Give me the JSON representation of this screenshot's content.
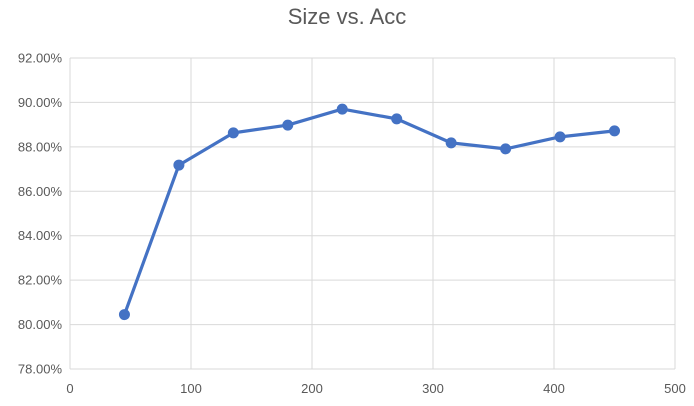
{
  "chart_data": {
    "type": "line",
    "title": "Size vs. Acc",
    "xlabel": "",
    "ylabel": "",
    "xlim": [
      0,
      500
    ],
    "ylim": [
      0.78,
      0.92
    ],
    "x_ticks": [
      0,
      100,
      200,
      300,
      400,
      500
    ],
    "y_ticks": [
      0.78,
      0.8,
      0.82,
      0.84,
      0.86,
      0.88,
      0.9,
      0.92
    ],
    "x_tick_labels": [
      "0",
      "100",
      "200",
      "300",
      "400",
      "500"
    ],
    "y_tick_labels": [
      "78.00%",
      "80.00%",
      "82.00%",
      "84.00%",
      "86.00%",
      "88.00%",
      "90.00%",
      "92.00%"
    ],
    "grid": true,
    "legend": "none",
    "series": [
      {
        "color": "#4472C4",
        "x": [
          45,
          90,
          135,
          180,
          225,
          270,
          315,
          360,
          405,
          450
        ],
        "y": [
          0.8045,
          0.8718,
          0.8863,
          0.8898,
          0.897,
          0.8926,
          0.8818,
          0.8791,
          0.8845,
          0.8872
        ]
      }
    ]
  }
}
